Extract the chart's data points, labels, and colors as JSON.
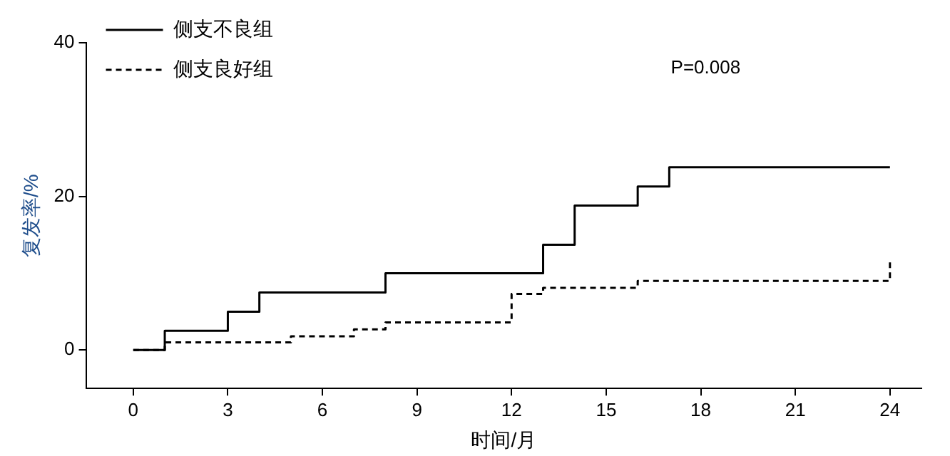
{
  "chart_data": {
    "type": "step",
    "xlabel": "时间/月",
    "ylabel": "复发率/%",
    "xlim": [
      -1.5,
      25
    ],
    "xticks": [
      0,
      3,
      6,
      9,
      12,
      15,
      18,
      21,
      24
    ],
    "ylim": [
      -5,
      40
    ],
    "yticks": [
      0,
      20,
      40
    ],
    "grid": false,
    "legend": "top left",
    "annotations": [
      "P=0.008"
    ],
    "series": [
      {
        "name": "侧支不良组",
        "color": "#000000",
        "line_style": "solid",
        "x": [
          0,
          1,
          3,
          4,
          8,
          13,
          14,
          16,
          17,
          24
        ],
        "values": [
          0,
          2.5,
          5,
          7.5,
          10,
          13.7,
          18.8,
          21.3,
          23.8,
          23.8
        ]
      },
      {
        "name": "侧支良好组",
        "color": "#000000",
        "line_style": "dashed",
        "x": [
          0,
          1,
          5,
          7,
          8,
          12,
          13,
          16,
          24,
          24
        ],
        "values": [
          0,
          1,
          1.8,
          2.7,
          3.6,
          7.3,
          8.1,
          9,
          9,
          11.9
        ]
      }
    ]
  }
}
